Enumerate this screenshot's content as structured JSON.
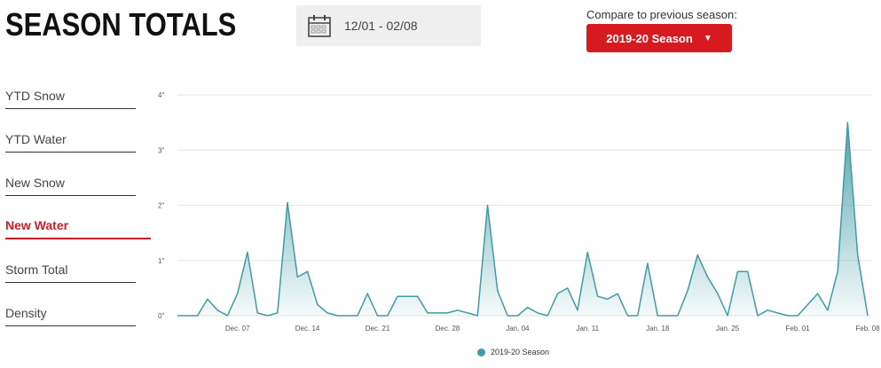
{
  "header": {
    "title": "SEASON TOTALS",
    "date_range": "12/01 - 02/08",
    "compare_label": "Compare to previous season:",
    "season_button": "2019-20 Season",
    "caret": "▼"
  },
  "metrics": [
    {
      "label": "YTD Snow",
      "active": false
    },
    {
      "label": "YTD Water",
      "active": false
    },
    {
      "label": "New Snow",
      "active": false
    },
    {
      "label": "New Water",
      "active": true
    },
    {
      "label": "Storm Total",
      "active": false
    },
    {
      "label": "Density",
      "active": false
    }
  ],
  "colors": {
    "accent": "#d71920",
    "series": "#3f9ba4"
  },
  "icons": {
    "date": "calendar-icon"
  },
  "chart_data": {
    "type": "area",
    "y_ticks": [
      "0\"",
      "1\"",
      "2\"",
      "3\"",
      "4\""
    ],
    "ylim": [
      0,
      4
    ],
    "x_tick_labels": [
      "Dec. 07",
      "Dec. 14",
      "Dec. 21",
      "Dec. 28",
      "Jan. 04",
      "Jan. 11",
      "Jan. 18",
      "Jan. 25",
      "Feb. 01",
      "Feb. 08"
    ],
    "x_tick_index": [
      6,
      13,
      20,
      27,
      34,
      41,
      48,
      55,
      62,
      69
    ],
    "series": [
      {
        "name": "2019-20 Season",
        "values": [
          0,
          0,
          0,
          0.3,
          0.1,
          0,
          0.4,
          1.15,
          0.05,
          0,
          0.05,
          2.05,
          0.7,
          0.8,
          0.2,
          0.05,
          0,
          0,
          0,
          0.4,
          0,
          0,
          0.35,
          0.35,
          0.35,
          0.05,
          0.05,
          0.05,
          0.1,
          0.05,
          0,
          2.0,
          0.45,
          0,
          0,
          0.15,
          0.05,
          0,
          0.4,
          0.5,
          0.1,
          1.15,
          0.35,
          0.3,
          0.4,
          0,
          0,
          0.95,
          0,
          0,
          0,
          0.45,
          1.1,
          0.7,
          0.4,
          0,
          0.8,
          0.8,
          0,
          0.1,
          0.05,
          0,
          0,
          0.2,
          0.4,
          0.1,
          0.8,
          3.5,
          1.1,
          0
        ]
      }
    ],
    "legend_position": "bottom-center",
    "grid": true
  }
}
